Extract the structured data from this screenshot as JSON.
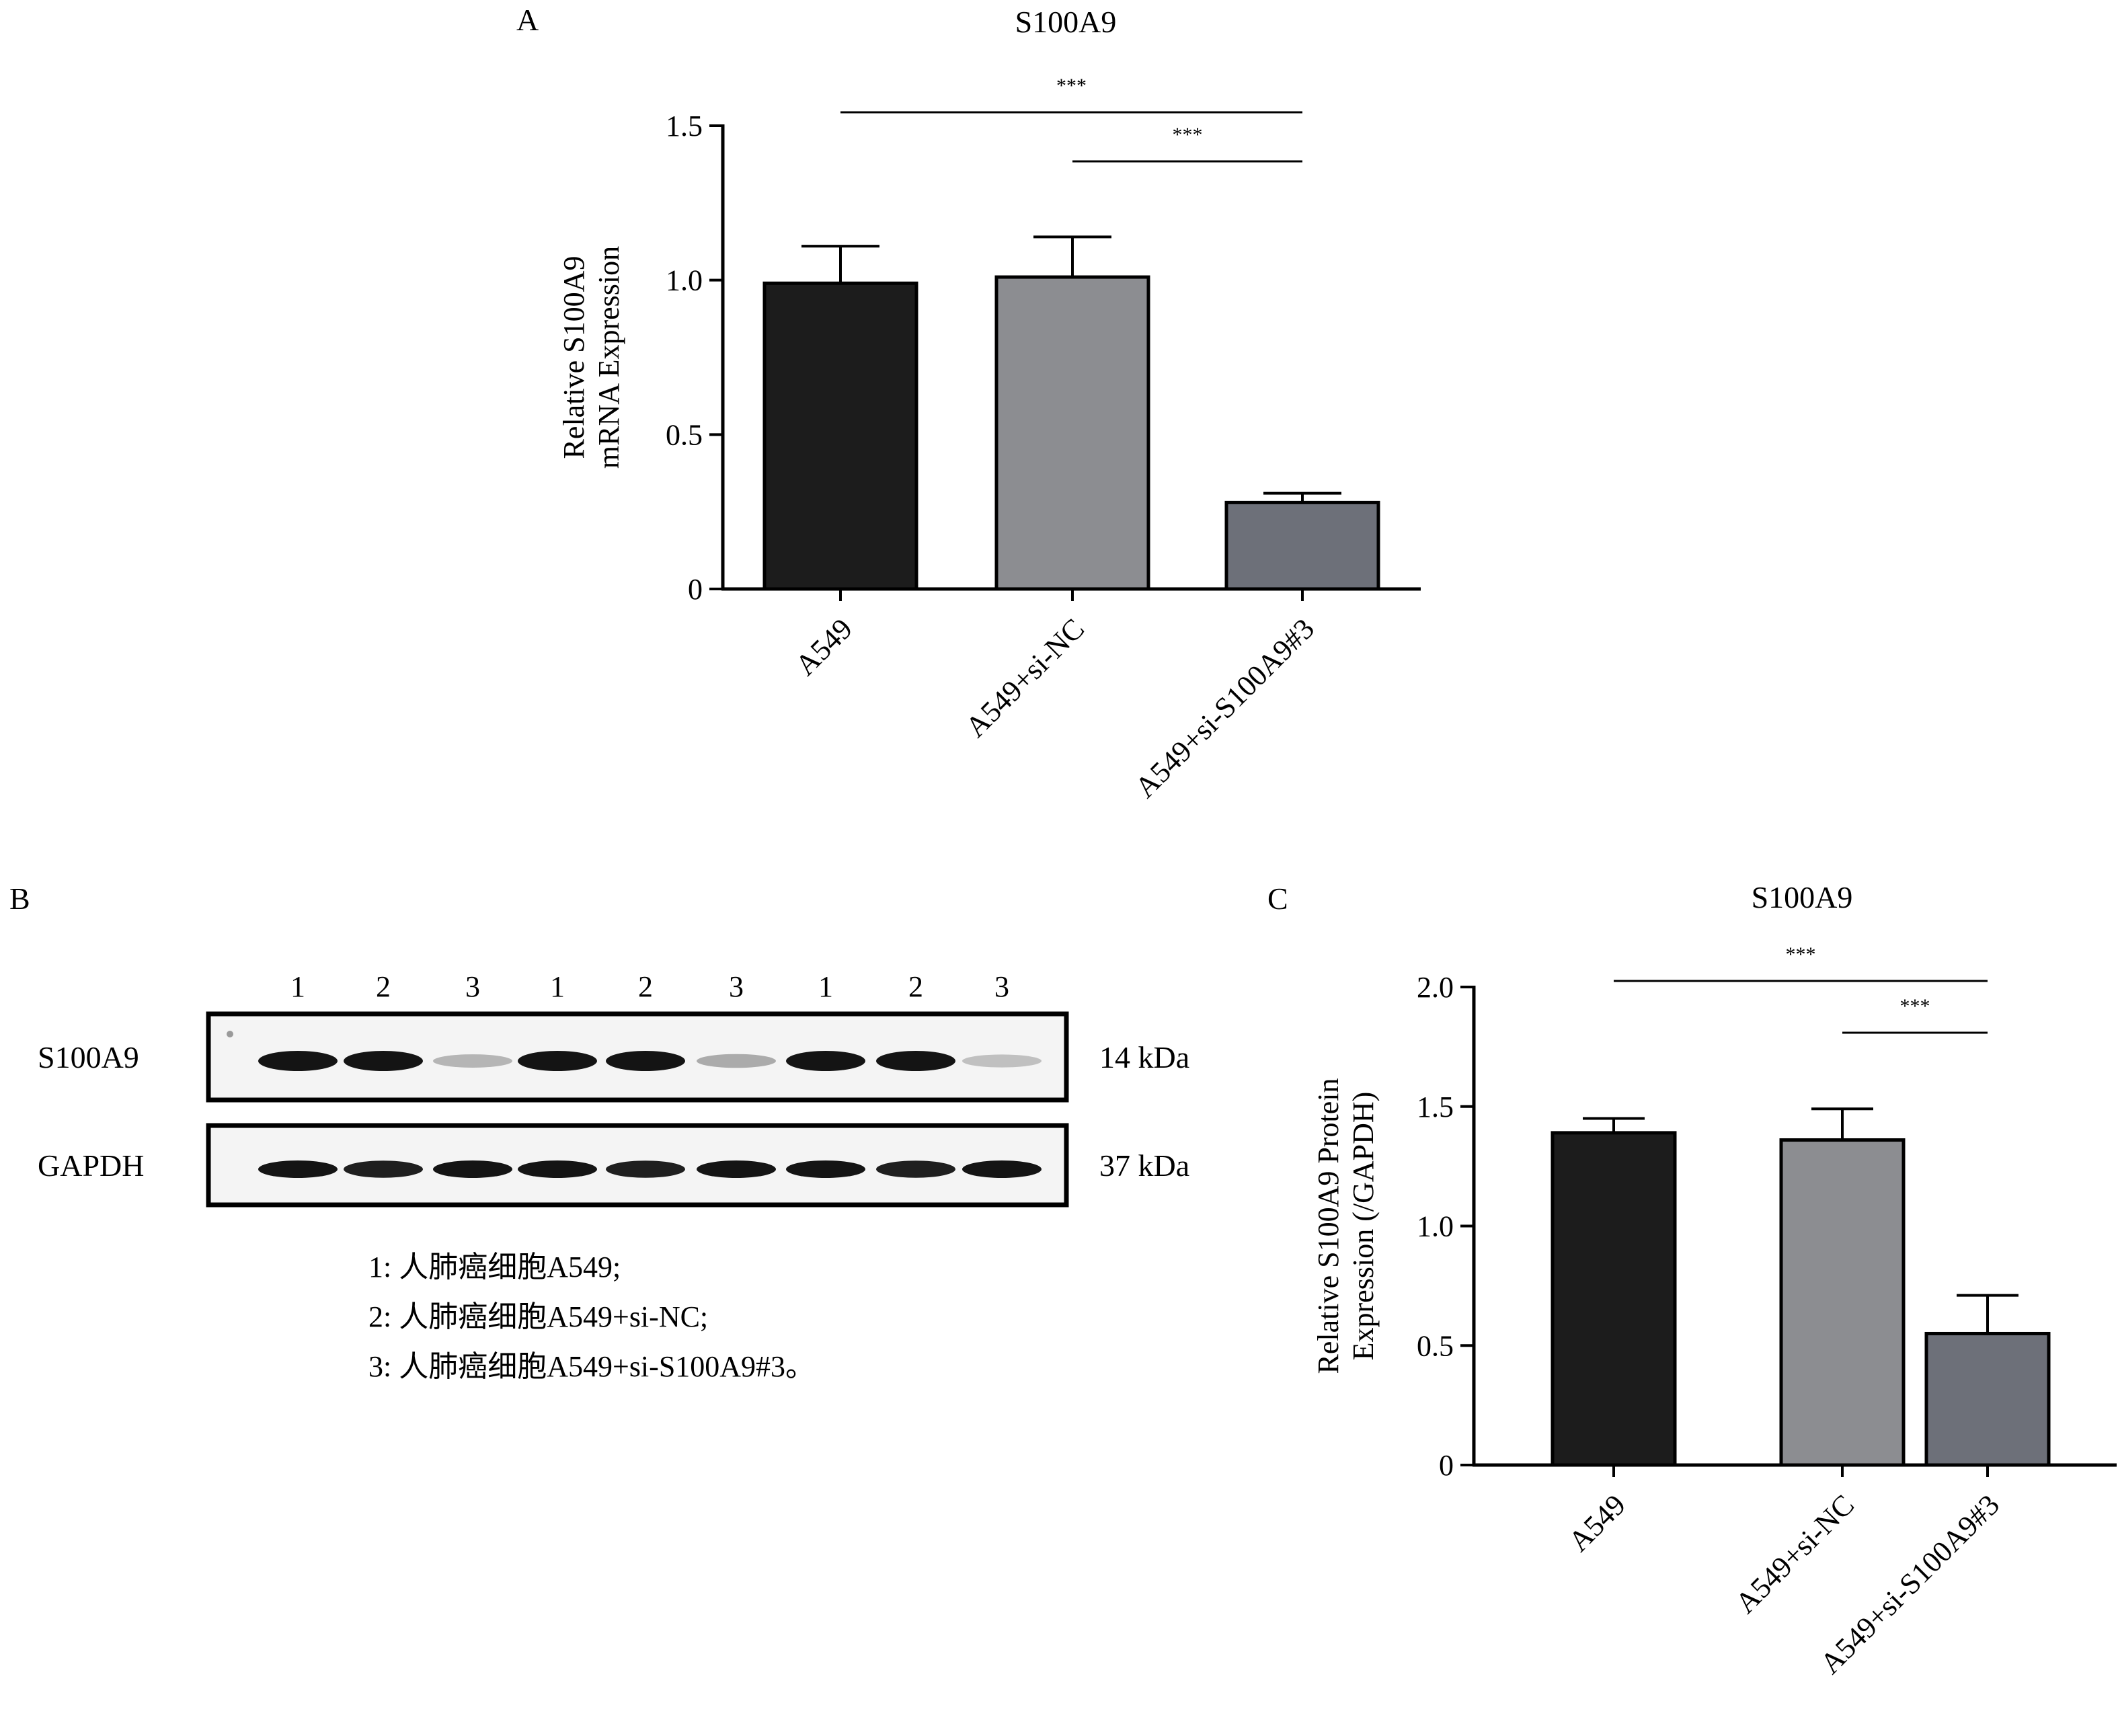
{
  "chart_data": [
    {
      "panel": "A",
      "type": "bar",
      "title": "S100A9",
      "ylabel_lines": [
        "Relative S100A9",
        "mRNA Expression"
      ],
      "xlabel": "",
      "categories": [
        "A549",
        "A549+si-NC",
        "A549+si-S100A9#3"
      ],
      "values": [
        0.99,
        1.01,
        0.28
      ],
      "errors": [
        0.12,
        0.13,
        0.03
      ],
      "ylim": [
        0,
        1.5
      ],
      "yticks": [
        0,
        0.5,
        1.0,
        1.5
      ],
      "ytick_labels": [
        "0",
        "0.5",
        "1.0",
        "1.5"
      ],
      "bar_colors": [
        "#1c1c1c",
        "#8c8d91",
        "#6d7079"
      ],
      "significance": [
        {
          "from": 0,
          "to": 2,
          "label": "***"
        },
        {
          "from": 1,
          "to": 2,
          "label": "***"
        }
      ],
      "grid": false
    },
    {
      "panel": "C",
      "type": "bar",
      "title": "S100A9",
      "ylabel_lines": [
        "Relative S100A9 Protein",
        "Expression (/GAPDH)"
      ],
      "xlabel": "",
      "categories": [
        "A549",
        "A549+si-NC",
        "A549+si-S100A9#3"
      ],
      "values": [
        1.39,
        1.36,
        0.55
      ],
      "errors": [
        0.06,
        0.13,
        0.16
      ],
      "ylim": [
        0,
        2.0
      ],
      "yticks": [
        0,
        0.5,
        1.0,
        1.5,
        2.0
      ],
      "ytick_labels": [
        "0",
        "0.5",
        "1.0",
        "1.5",
        "2.0"
      ],
      "bar_colors": [
        "#1c1c1c",
        "#8c8d91",
        "#6d7079"
      ],
      "significance": [
        {
          "from": 0,
          "to": 2,
          "label": "***"
        },
        {
          "from": 1,
          "to": 2,
          "label": "***"
        }
      ],
      "grid": false
    }
  ],
  "western_blot": {
    "panel": "B",
    "lane_labels": [
      "1",
      "2",
      "3",
      "1",
      "2",
      "3",
      "1",
      "2",
      "3"
    ],
    "rows": [
      {
        "name": "S100A9",
        "size": "14 kDa",
        "intensities": [
          1.0,
          1.0,
          0.25,
          1.0,
          1.0,
          0.3,
          1.0,
          1.0,
          0.2
        ]
      },
      {
        "name": "GAPDH",
        "size": "37 kDa",
        "intensities": [
          1.0,
          0.95,
          1.0,
          1.0,
          0.95,
          1.0,
          1.0,
          0.95,
          1.0
        ]
      }
    ],
    "legend": [
      "1: 人肺癌细胞A549;",
      "2: 人肺癌细胞A549+si-NC;",
      "3: 人肺癌细胞A549+si-S100A9#3。"
    ]
  }
}
